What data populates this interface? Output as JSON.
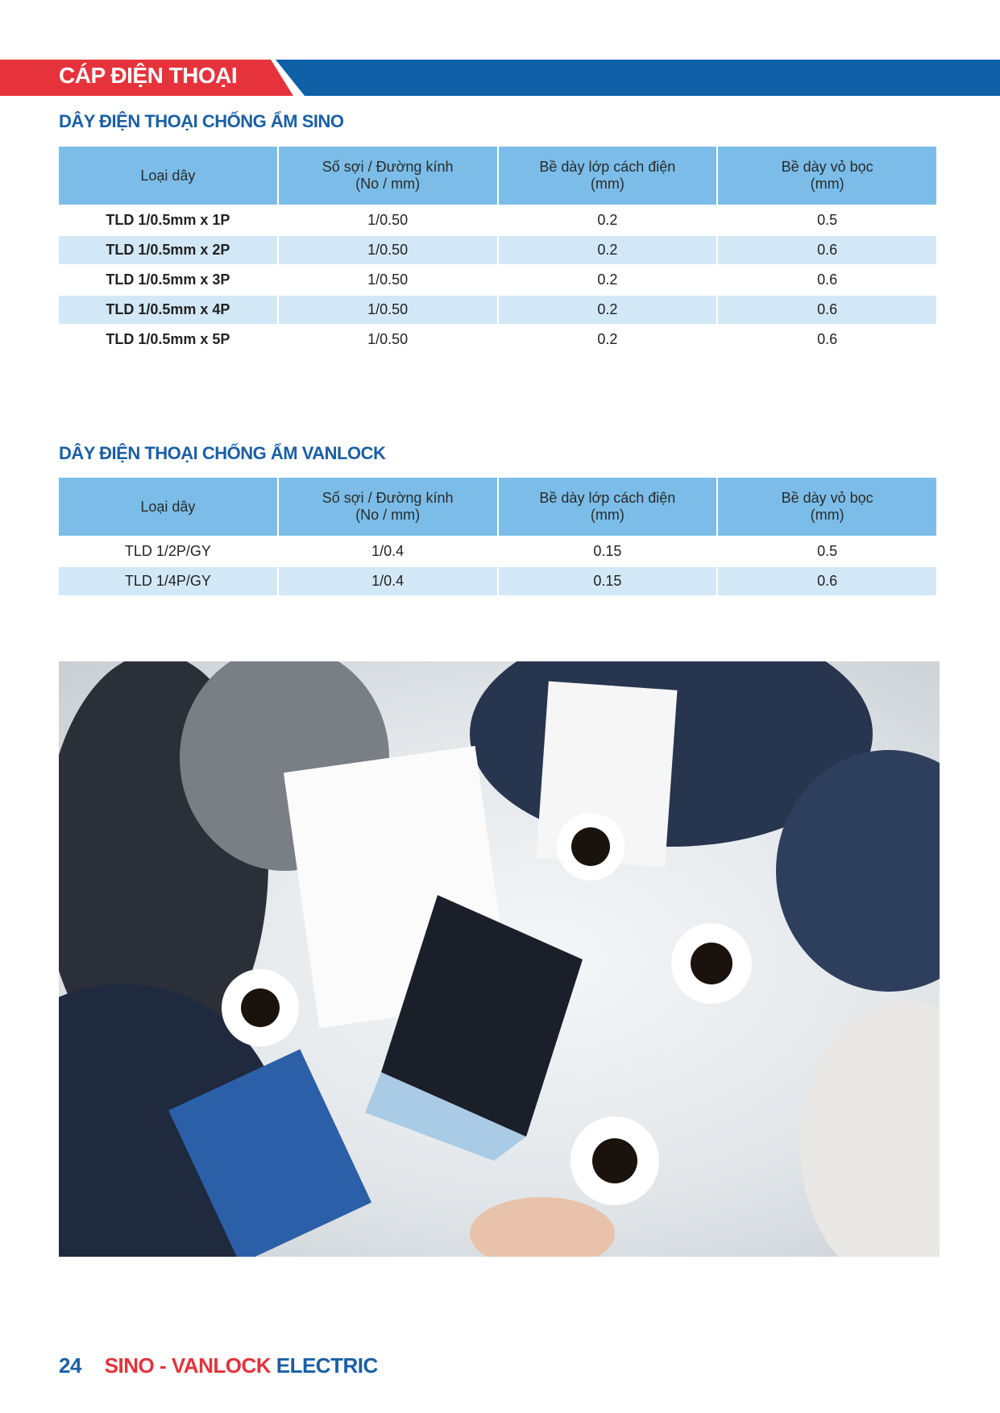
{
  "header": {
    "title": "CÁP ĐIỆN THOẠI",
    "colors": {
      "red": "#e6333b",
      "blue": "#1060a8"
    }
  },
  "sino_section": {
    "title": "DÂY ĐIỆN THOẠI CHỐNG ẨM SINO",
    "columns": [
      "Loại dây",
      "Số sợi / Đường kính",
      "(No / mm)",
      "Bề dày lớp cách điện",
      "(mm)",
      "Bề dày vỏ bọc",
      "(mm)"
    ],
    "rows": [
      [
        "TLD 1/0.5mm x 1P",
        "1/0.50",
        "0.2",
        "0.5"
      ],
      [
        "TLD 1/0.5mm x 2P",
        "1/0.50",
        "0.2",
        "0.6"
      ],
      [
        "TLD 1/0.5mm x 3P",
        "1/0.50",
        "0.2",
        "0.6"
      ],
      [
        "TLD 1/0.5mm x 4P",
        "1/0.50",
        "0.2",
        "0.6"
      ],
      [
        "TLD 1/0.5mm x 5P",
        "1/0.50",
        "0.2",
        "0.6"
      ]
    ]
  },
  "vanlock_section": {
    "title": "DÂY ĐIỆN THOẠI CHỐNG ẨM VANLOCK",
    "columns": [
      "Loại dây",
      "Số sợi / Đường kính",
      "(No / mm)",
      "Bề dày lớp cách điện",
      "(mm)",
      "Bề dày vỏ bọc",
      "(mm)"
    ],
    "rows": [
      [
        "TLD 1/2P/GY",
        "1/0.4",
        "0.15",
        "0.5"
      ],
      [
        "TLD 1/4P/GY",
        "1/0.4",
        "0.15",
        "0.6"
      ]
    ]
  },
  "photo": {
    "subject": "business-meeting-photo"
  },
  "footer": {
    "page_number": "24",
    "brand_sino": "SINO",
    "dash": "-",
    "brand_vanlock": "VANLOCK",
    "brand_electric": "ELECTRIC"
  }
}
